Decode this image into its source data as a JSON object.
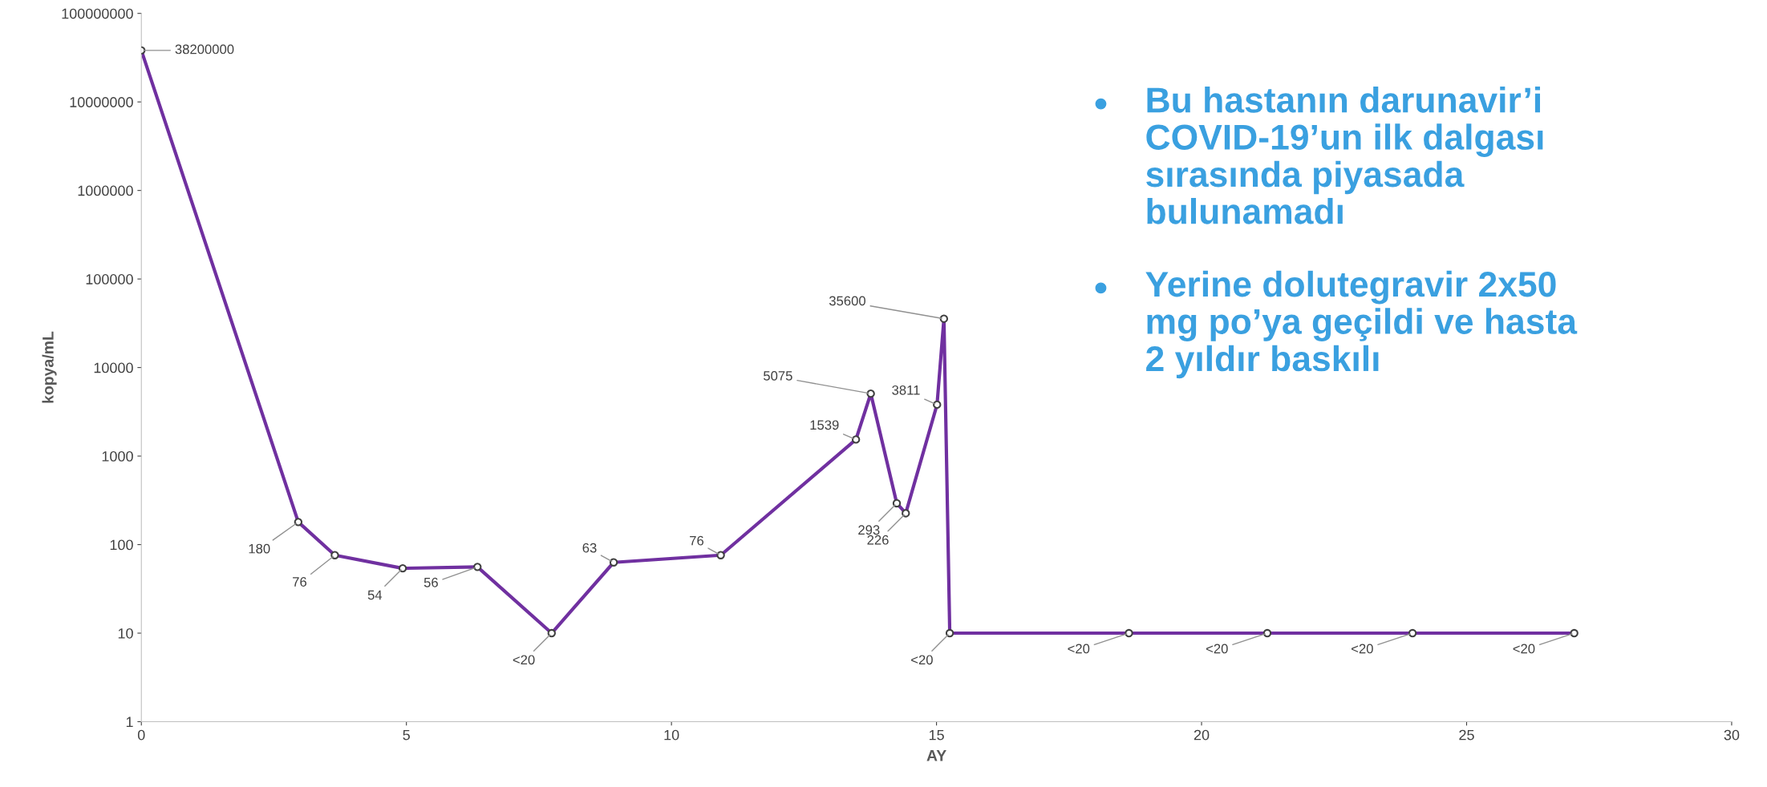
{
  "chart_data": {
    "type": "line",
    "xlabel": "AY",
    "ylabel": "kopya/mL",
    "x": [
      0,
      2.96,
      3.65,
      4.93,
      6.34,
      7.74,
      8.91,
      10.93,
      13.48,
      13.76,
      14.25,
      14.42,
      15.01,
      15.14,
      15.25,
      18.63,
      21.24,
      23.98,
      27.03
    ],
    "series": [
      {
        "color": "#7030a0",
        "values": [
          38200000,
          180,
          76,
          54,
          56,
          10,
          63,
          76,
          1539,
          5075,
          293,
          226,
          3811,
          35600,
          10,
          10,
          10,
          10,
          10
        ],
        "value_labels": [
          "38200000",
          "180",
          "76",
          "54",
          "56",
          "<20",
          "63",
          "76",
          "1539",
          "5075",
          "293",
          "226",
          "3811",
          "35600",
          "<20",
          "<20",
          "<20",
          "<20",
          "<20"
        ]
      }
    ],
    "log": "y",
    "xlim": [
      0,
      30
    ],
    "xticks": [
      0,
      5,
      10,
      15,
      20,
      25,
      30
    ],
    "ylim": [
      1,
      100000000
    ],
    "yticks": [
      1,
      10,
      100,
      1000,
      10000,
      100000,
      1000000,
      10000000,
      100000000
    ],
    "grid": false,
    "marker": "circle",
    "line_style": "solid",
    "annotations": [
      "Bu hastanın darunavir’i\nCOVID-19’un ilk dalgası\nsırasında piyasada\nbulunamadı",
      "Yerine dolutegravir 2x50\nmg po’ya geçildi ve hasta\n2 yıldır baskılı"
    ]
  }
}
